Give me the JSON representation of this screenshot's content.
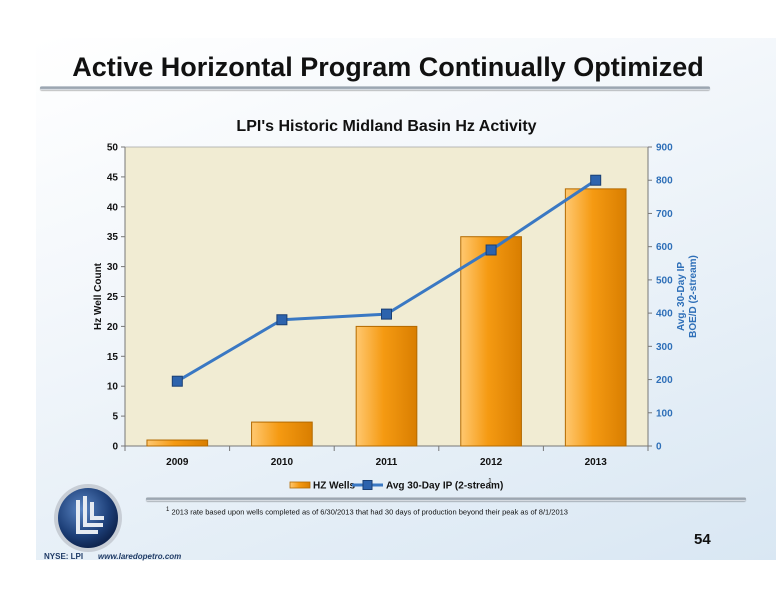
{
  "slide": {
    "title": "Active Horizontal Program Continually Optimized",
    "footnote_marker": "1",
    "footnote_text": "2013 rate based upon wells completed as of 6/30/2013 that had 30 days of production beyond their peak as of 8/1/2013",
    "page_number": "54",
    "ticker": "NYSE: LPI",
    "website": "www.laredopetro.com"
  },
  "colors": {
    "bar": "#f59a12",
    "bar_edge": "#b36a00",
    "line": "#3a78c3",
    "marker": "#2d63ad",
    "right_axis": "#2e6fb8",
    "plot_bg": "#f1ecd3"
  },
  "chart_data": {
    "type": "bar",
    "title": "LPI's Historic Midland Basin Hz Activity",
    "categories": [
      "2009",
      "2010",
      "2011",
      "2012",
      "2013"
    ],
    "series": [
      {
        "name": "HZ Wells",
        "type": "bar",
        "axis": "left",
        "values": [
          1,
          4,
          20,
          35,
          43
        ]
      },
      {
        "name": "Avg 30-Day IP (2-stream)",
        "type": "line",
        "axis": "right",
        "values": [
          195,
          380,
          397,
          590,
          800
        ]
      }
    ],
    "legend_superscript": "1",
    "ylabel": "Hz Well Count",
    "ylim": [
      0,
      50
    ],
    "yticks": [
      "0",
      "5",
      "10",
      "15",
      "20",
      "25",
      "30",
      "35",
      "40",
      "45",
      "50"
    ],
    "y2label_line1": "Avg. 30-Day IP",
    "y2label_line2": "BOE/D (2-stream)",
    "y2lim": [
      0,
      900
    ],
    "y2ticks": [
      "0",
      "100",
      "200",
      "300",
      "400",
      "500",
      "600",
      "700",
      "800",
      "900"
    ],
    "legend_position": "bottom",
    "grid": false
  }
}
